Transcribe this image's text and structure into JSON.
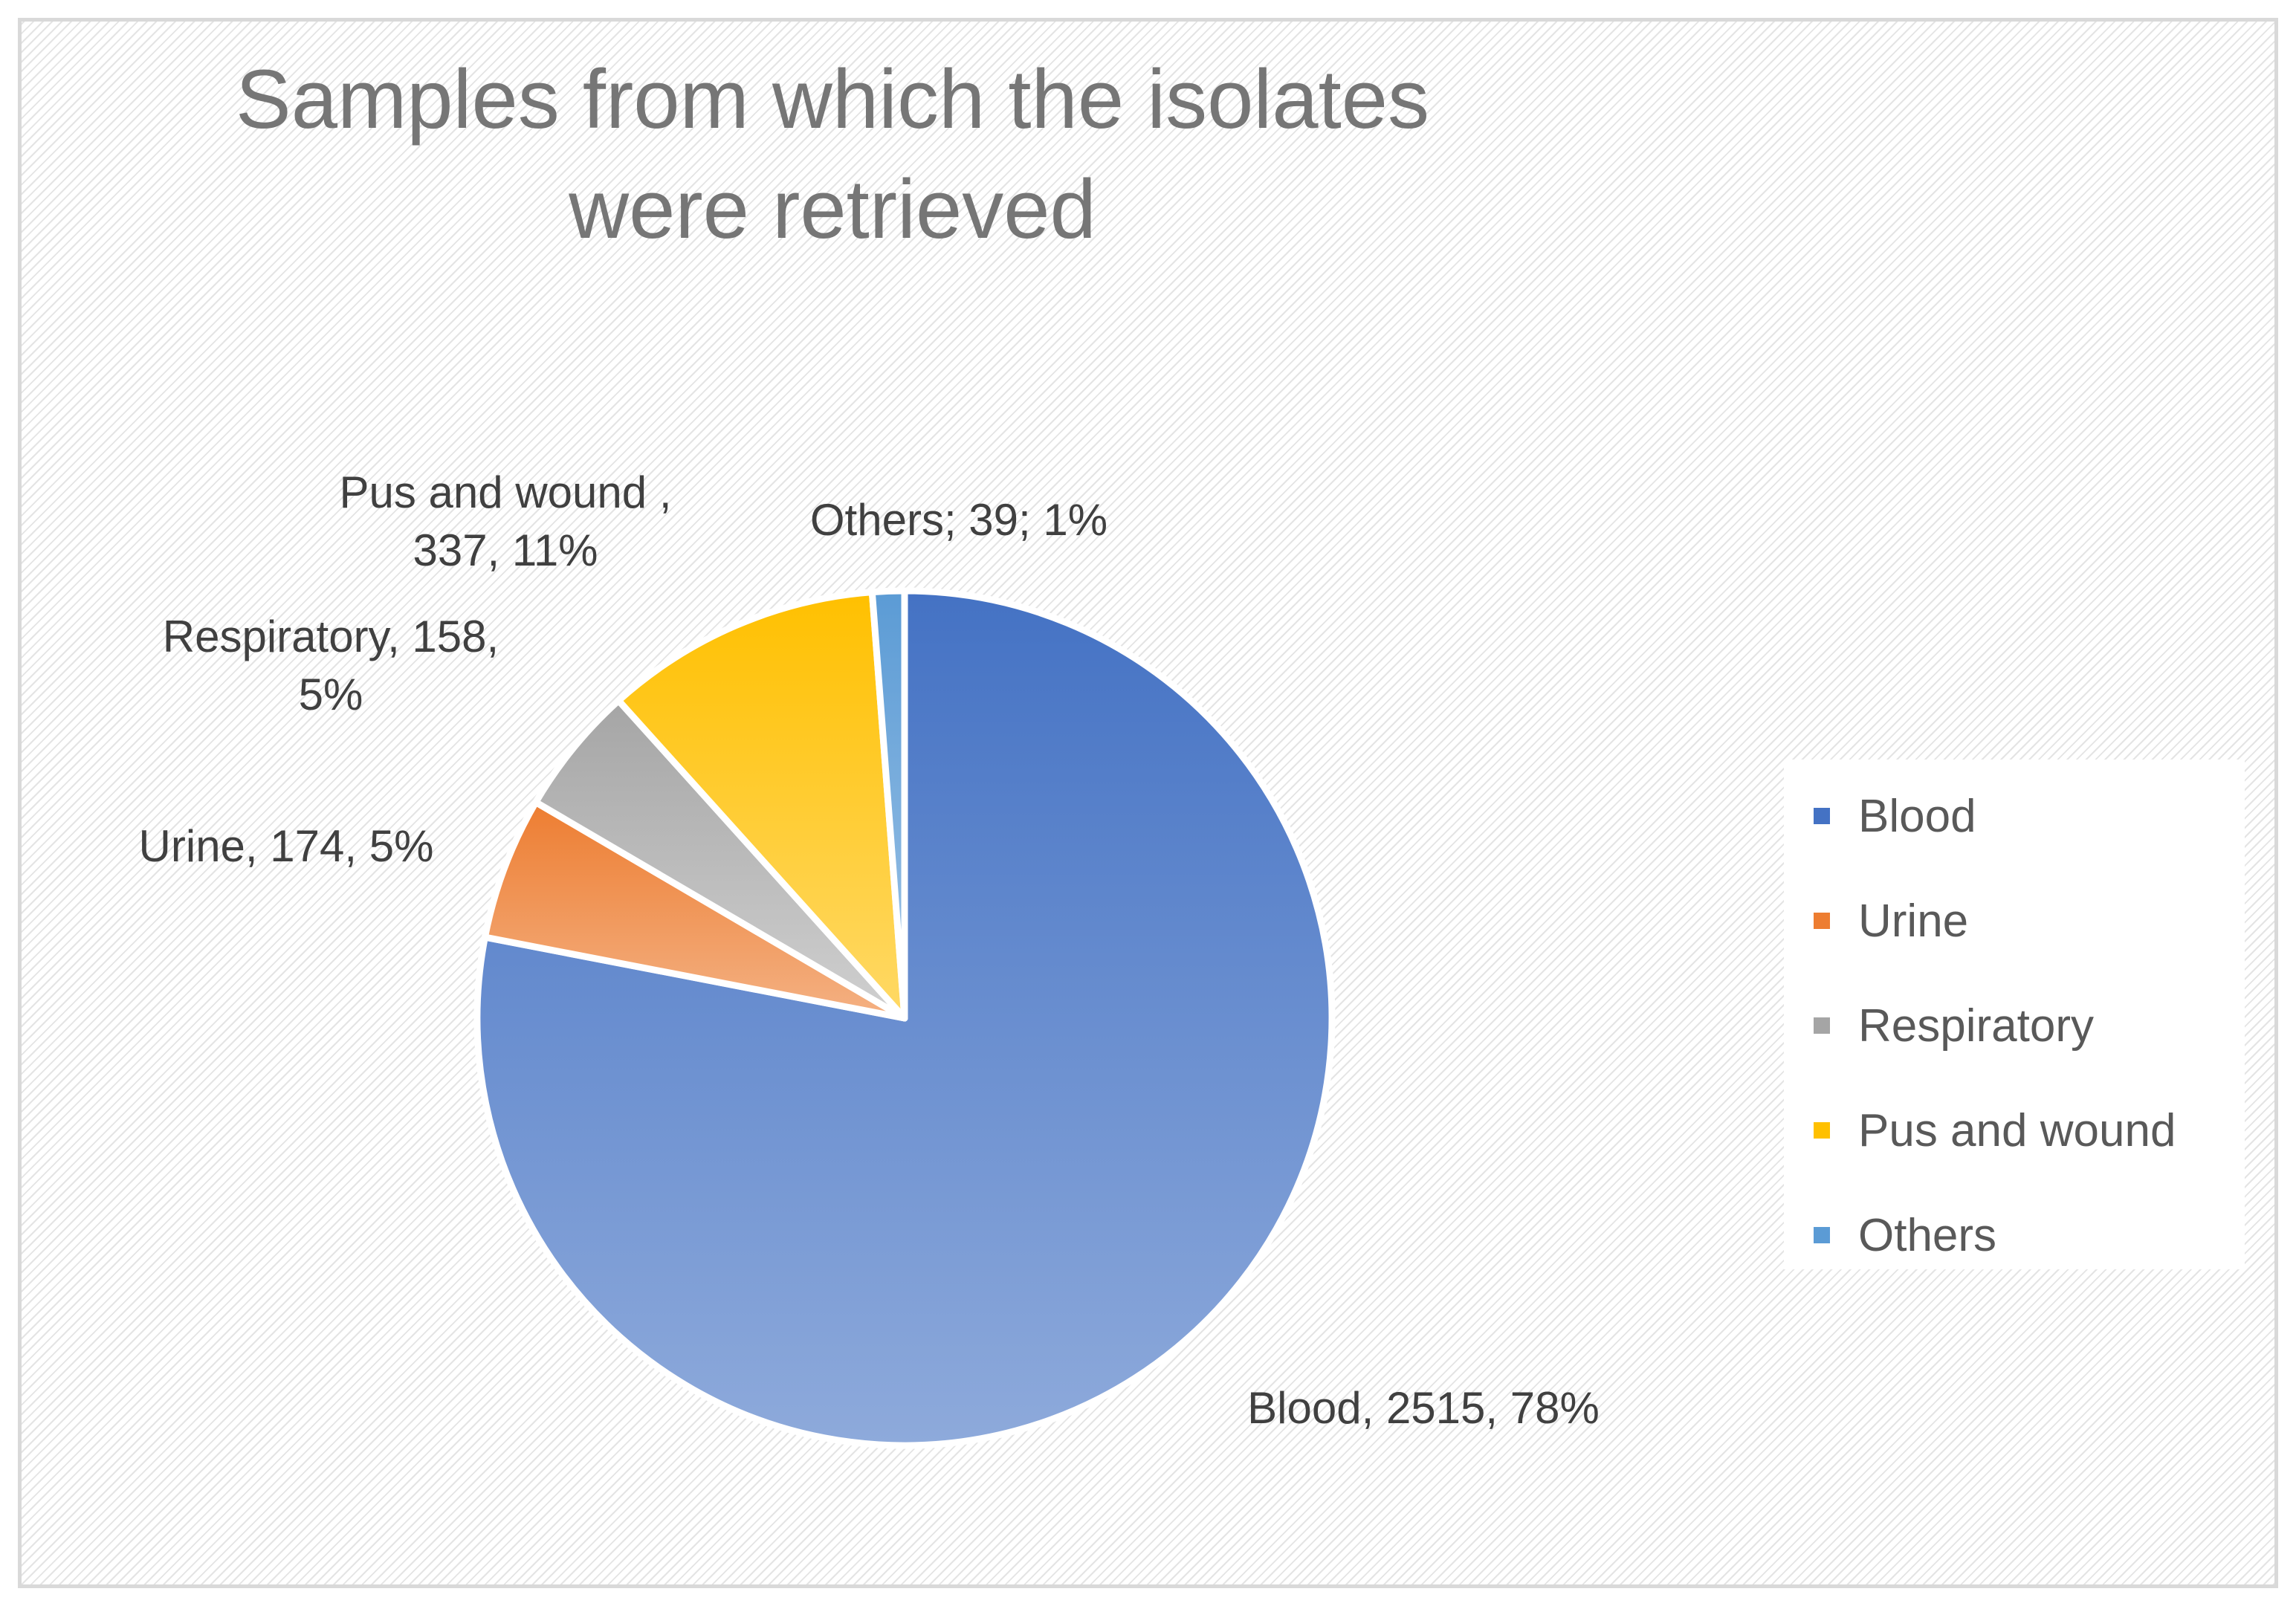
{
  "chart_data": {
    "type": "pie",
    "title": "Samples from which the isolates were retrieved",
    "categories": [
      "Blood",
      "Urine",
      "Respiratory",
      "Pus and wound",
      "Others"
    ],
    "values": [
      2515,
      174,
      158,
      337,
      39
    ],
    "percentages": [
      78,
      5,
      5,
      11,
      1
    ],
    "colors": [
      "#4472c4",
      "#ed7d31",
      "#a5a5a5",
      "#ffc000",
      "#5b9bd5"
    ],
    "colors_light": [
      "#8eaadb",
      "#f4b183",
      "#d0d0d0",
      "#ffd966",
      "#9dc3e6"
    ],
    "data_labels": [
      [
        "Blood, 2515, 78%"
      ],
      [
        "Urine, 174, 5%"
      ],
      [
        "Respiratory, 158,",
        "5%"
      ],
      [
        "Pus and wound ,",
        "337, 11%"
      ],
      [
        "Others; 39; 1%"
      ]
    ],
    "legend": {
      "position": "right",
      "items": [
        "Blood",
        "Urine",
        "Respiratory",
        "Pus and wound",
        "Others"
      ]
    }
  }
}
